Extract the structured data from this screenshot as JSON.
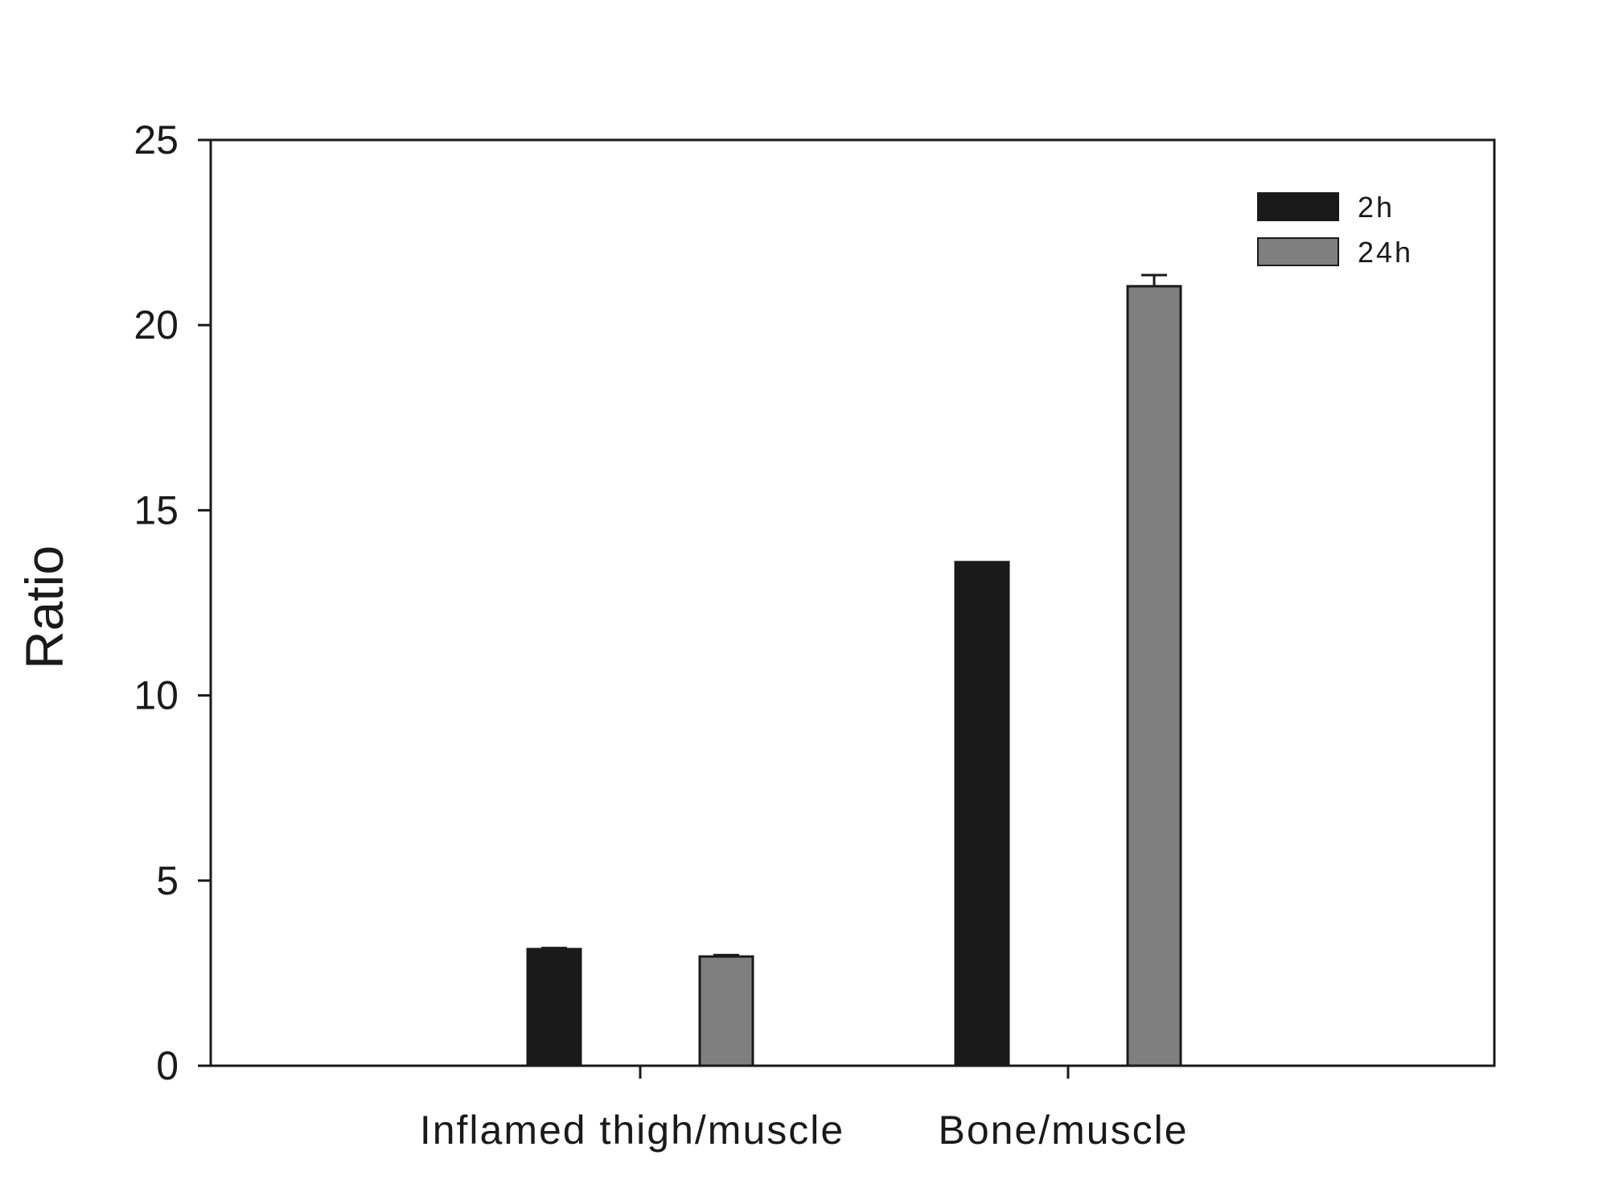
{
  "chart_data": {
    "type": "bar",
    "categories": [
      "Inflamed  thigh/muscle",
      "Bone/muscle"
    ],
    "series": [
      {
        "name": "2h",
        "values": [
          3.15,
          13.6
        ],
        "errors": [
          0.03,
          0.0
        ]
      },
      {
        "name": "24h",
        "values": [
          2.95,
          21.05
        ],
        "errors": [
          0.04,
          0.3
        ]
      }
    ],
    "title": "",
    "xlabel": "",
    "ylabel": "Ratio",
    "ylim": [
      0,
      25
    ],
    "yticks": [
      0,
      5,
      10,
      15,
      20,
      25
    ],
    "grid": false,
    "legend_position": "top-right",
    "colors": {
      "2h": "#1a1a1a",
      "24h": "#7f7f7f",
      "axis": "#1a1a1a"
    }
  }
}
